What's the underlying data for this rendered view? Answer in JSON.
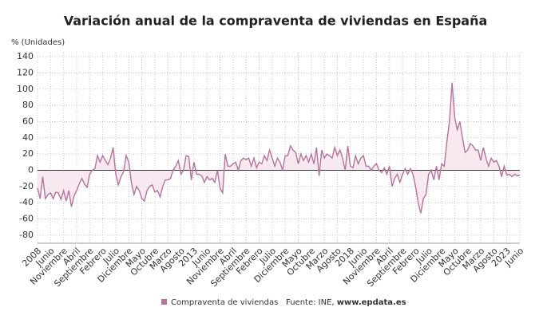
{
  "chart_data": {
    "type": "line",
    "title": "Variación anual de la compraventa de viviendas en España",
    "y_label": "% (Unidades)",
    "categories": [
      "2008",
      null,
      null,
      null,
      null,
      "Junio",
      null,
      null,
      null,
      null,
      "Noviembre",
      null,
      null,
      null,
      null,
      "Abril",
      null,
      null,
      null,
      null,
      "Septiembre",
      null,
      null,
      null,
      null,
      "Febrero",
      null,
      null,
      null,
      null,
      "Julio",
      null,
      null,
      null,
      null,
      "Diciembre",
      null,
      null,
      null,
      null,
      "Mayo",
      null,
      null,
      null,
      null,
      "Octubre",
      null,
      null,
      null,
      null,
      "Marzo",
      null,
      null,
      null,
      null,
      "Agosto",
      null,
      null,
      null,
      null,
      "2013",
      null,
      null,
      null,
      null,
      "Junio",
      null,
      null,
      null,
      null,
      "Noviembre",
      null,
      null,
      null,
      null,
      "Abril",
      null,
      null,
      null,
      null,
      "Septiembre",
      null,
      null,
      null,
      null,
      "Febrero",
      null,
      null,
      null,
      null,
      "Julio",
      null,
      null,
      null,
      null,
      "Diciembre",
      null,
      null,
      null,
      null,
      "Mayo",
      null,
      null,
      null,
      null,
      "Octubre",
      null,
      null,
      null,
      null,
      "Marzo",
      null,
      null,
      null,
      null,
      "Agosto",
      null,
      null,
      null,
      null,
      "2018",
      null,
      null,
      null,
      null,
      "Junio",
      null,
      null,
      null,
      null,
      "Noviembre",
      null,
      null,
      null,
      null,
      "Abril",
      null,
      null,
      null,
      null,
      "Septiembre",
      null,
      null,
      null,
      null,
      "Febrero",
      null,
      null,
      null,
      null,
      "Julio",
      null,
      null,
      null,
      null,
      "Diciembre",
      null,
      null,
      null,
      null,
      "Mayo",
      null,
      null,
      null,
      null,
      "Octubre",
      null,
      null,
      null,
      null,
      "Marzo",
      null,
      null,
      null,
      null,
      "Agosto",
      null,
      null,
      null,
      null,
      "2023",
      null,
      null,
      null,
      null,
      "Junio"
    ],
    "series": [
      {
        "name": "Compraventa de viviendas",
        "color": "#b5739d",
        "fill": "#f8e8f0",
        "values": [
          -22,
          -35,
          -8,
          -35,
          -30,
          -28,
          -35,
          -27,
          -28,
          -36,
          -25,
          -38,
          -25,
          -45,
          -32,
          -25,
          -17,
          -10,
          -17,
          -21,
          -5,
          0,
          2,
          18,
          10,
          18,
          12,
          7,
          15,
          28,
          -5,
          -18,
          -8,
          -2,
          18,
          10,
          -15,
          -30,
          -20,
          -25,
          -35,
          -38,
          -25,
          -20,
          -18,
          -27,
          -25,
          -33,
          -20,
          -12,
          -12,
          -10,
          0,
          5,
          12,
          -5,
          0,
          18,
          17,
          -12,
          10,
          -5,
          -5,
          -7,
          -15,
          -8,
          -12,
          -10,
          -15,
          0,
          -22,
          -28,
          20,
          5,
          5,
          8,
          10,
          0,
          12,
          15,
          13,
          15,
          5,
          15,
          3,
          10,
          8,
          18,
          12,
          25,
          15,
          5,
          15,
          10,
          0,
          18,
          18,
          30,
          25,
          22,
          8,
          20,
          12,
          18,
          10,
          20,
          8,
          28,
          -7,
          25,
          15,
          20,
          18,
          15,
          28,
          18,
          25,
          15,
          0,
          30,
          5,
          3,
          18,
          8,
          15,
          18,
          5,
          5,
          0,
          5,
          8,
          0,
          -3,
          3,
          -5,
          5,
          -20,
          -10,
          -5,
          -15,
          -5,
          2,
          -5,
          2,
          -5,
          -20,
          -40,
          -53,
          -35,
          -30,
          -5,
          0,
          -12,
          5,
          -12,
          8,
          5,
          35,
          60,
          108,
          65,
          50,
          60,
          40,
          22,
          25,
          33,
          30,
          25,
          25,
          12,
          28,
          15,
          5,
          15,
          10,
          12,
          5,
          -8,
          5,
          -6,
          -5,
          -8,
          -5,
          -7,
          -6
        ]
      }
    ],
    "ylim": [
      -90,
      145
    ],
    "yticks": [
      -80,
      -60,
      -40,
      -20,
      0,
      20,
      40,
      60,
      80,
      100,
      120,
      140
    ],
    "grid": true,
    "source_label": "Fuente: INE, ",
    "source_link": "www.epdata.es"
  }
}
